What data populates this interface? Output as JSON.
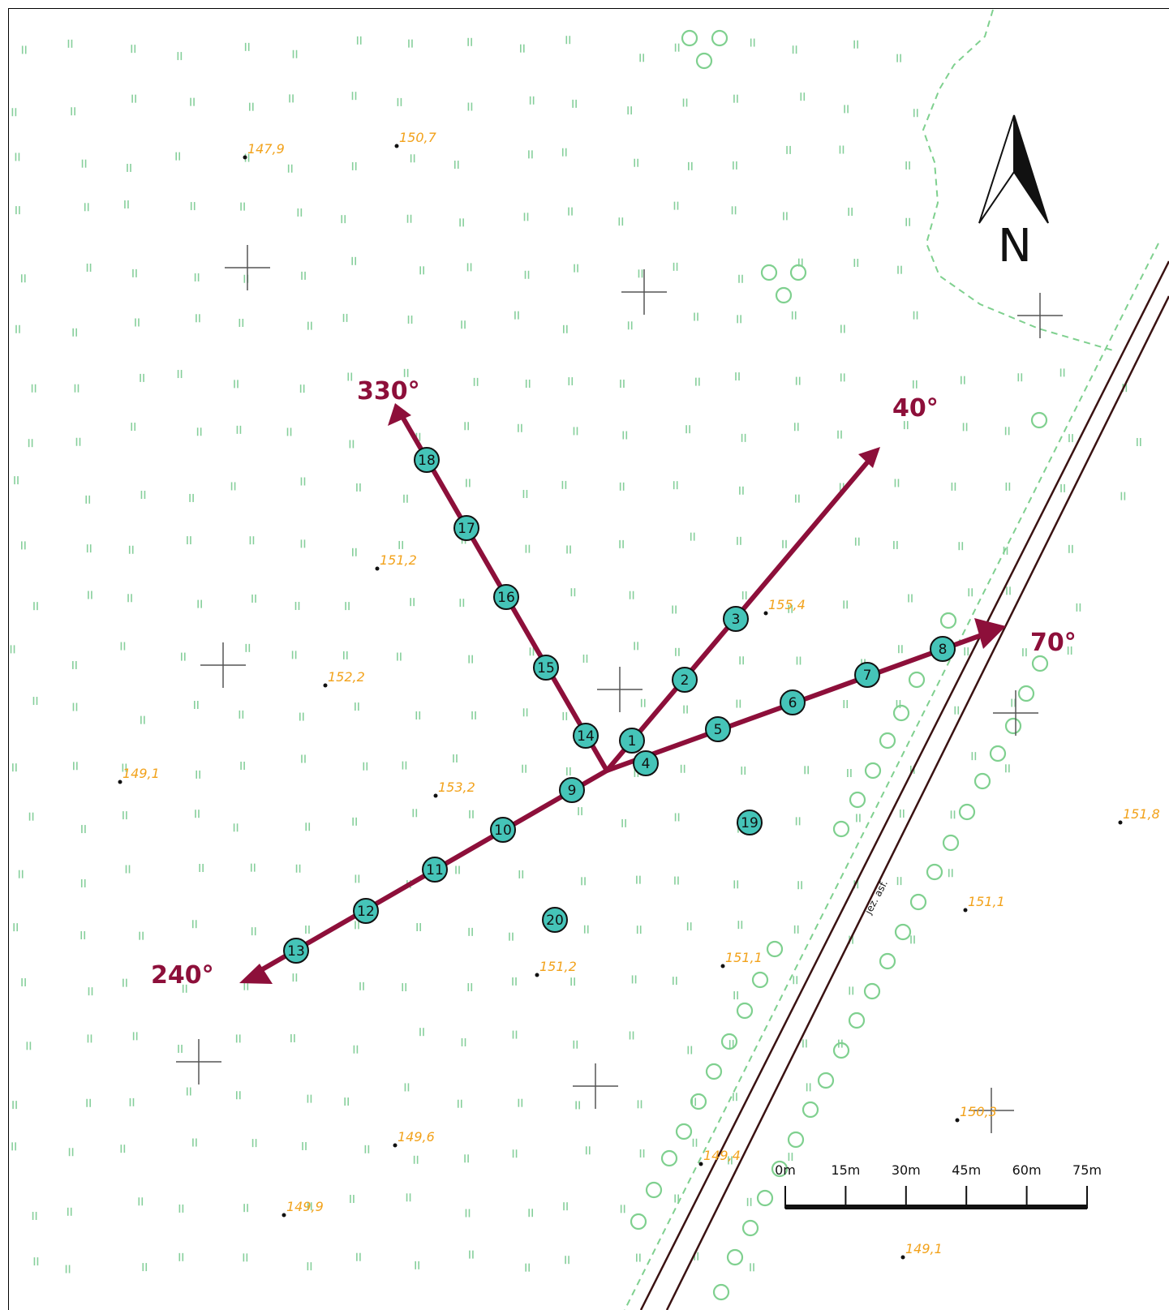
{
  "map": {
    "road_label": "jez. asf.",
    "north_label": "N"
  },
  "elevation_points": [
    {
      "id": "e1",
      "label": "147,9"
    },
    {
      "id": "e2",
      "label": "150,7"
    },
    {
      "id": "e3",
      "label": "151,2"
    },
    {
      "id": "e4",
      "label": "155,4"
    },
    {
      "id": "e5",
      "label": "152,2"
    },
    {
      "id": "e6",
      "label": "149,1"
    },
    {
      "id": "e7",
      "label": "153,2"
    },
    {
      "id": "e8",
      "label": "151,8"
    },
    {
      "id": "e9",
      "label": "151,1"
    },
    {
      "id": "e10",
      "label": "151,2"
    },
    {
      "id": "e11",
      "label": "151,1"
    },
    {
      "id": "e12",
      "label": "150,3"
    },
    {
      "id": "e13",
      "label": "149,6"
    },
    {
      "id": "e14",
      "label": "149,4"
    },
    {
      "id": "e15",
      "label": "149,9"
    },
    {
      "id": "e16",
      "label": "149,1"
    }
  ],
  "azimuths": [
    {
      "id": "a330",
      "label": "330°"
    },
    {
      "id": "a40",
      "label": "40°"
    },
    {
      "id": "a70",
      "label": "70°"
    },
    {
      "id": "a240",
      "label": "240°"
    }
  ],
  "measurement_points": [
    "1",
    "2",
    "3",
    "4",
    "5",
    "6",
    "7",
    "8",
    "9",
    "10",
    "11",
    "12",
    "13",
    "14",
    "15",
    "16",
    "17",
    "18",
    "19",
    "20"
  ],
  "scale_bar": {
    "labels": [
      "0m",
      "15m",
      "30m",
      "45m",
      "60m",
      "75m"
    ]
  },
  "colors": {
    "ray": "#8d0f3a",
    "point_fill": "#45c4b8",
    "grass": "#86cf9b",
    "elevation_text": "#f2a21b"
  }
}
